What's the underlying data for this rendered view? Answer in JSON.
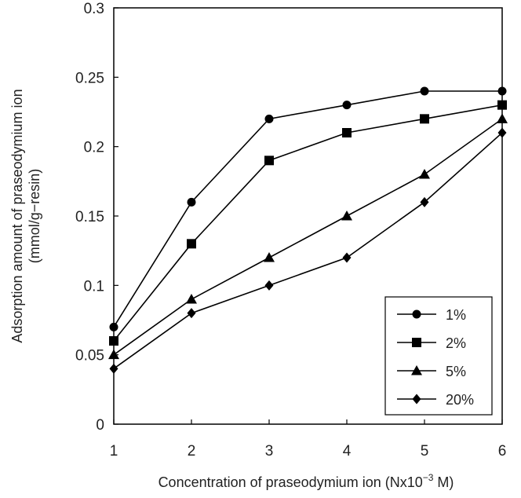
{
  "chart_data": {
    "type": "line",
    "title": "",
    "xlabel_prefix": "Concentration of praseodymium ion (Nx10",
    "xlabel_exp": "−3",
    "xlabel_suffix": " M)",
    "ylabel_line1": "Adsorption amount of praseodymium ion",
    "ylabel_line2": "(mmol/g−resin)",
    "x": [
      1,
      2,
      3,
      4,
      5,
      6
    ],
    "x_tick_labels": [
      "1",
      "2",
      "3",
      "4",
      "5",
      "6"
    ],
    "xlim": [
      1,
      6
    ],
    "ylim": [
      0,
      0.3
    ],
    "y_ticks": [
      0,
      0.05,
      0.1,
      0.15,
      0.2,
      0.25,
      0.3
    ],
    "y_tick_labels": [
      "0",
      "0.05",
      "0.1",
      "0.15",
      "0.2",
      "0.25",
      "0.3"
    ],
    "grid": false,
    "legend_position": "bottom-right",
    "series": [
      {
        "name": "1%",
        "marker": "circle",
        "values": [
          0.07,
          0.16,
          0.22,
          0.23,
          0.24,
          0.24
        ]
      },
      {
        "name": "2%",
        "marker": "square",
        "values": [
          0.06,
          0.13,
          0.19,
          0.21,
          0.22,
          0.23
        ]
      },
      {
        "name": "5%",
        "marker": "triangle",
        "values": [
          0.05,
          0.09,
          0.12,
          0.15,
          0.18,
          0.22
        ]
      },
      {
        "name": "20%",
        "marker": "diamond",
        "values": [
          0.04,
          0.08,
          0.1,
          0.12,
          0.16,
          0.21
        ]
      }
    ],
    "line_color": "#000000"
  }
}
